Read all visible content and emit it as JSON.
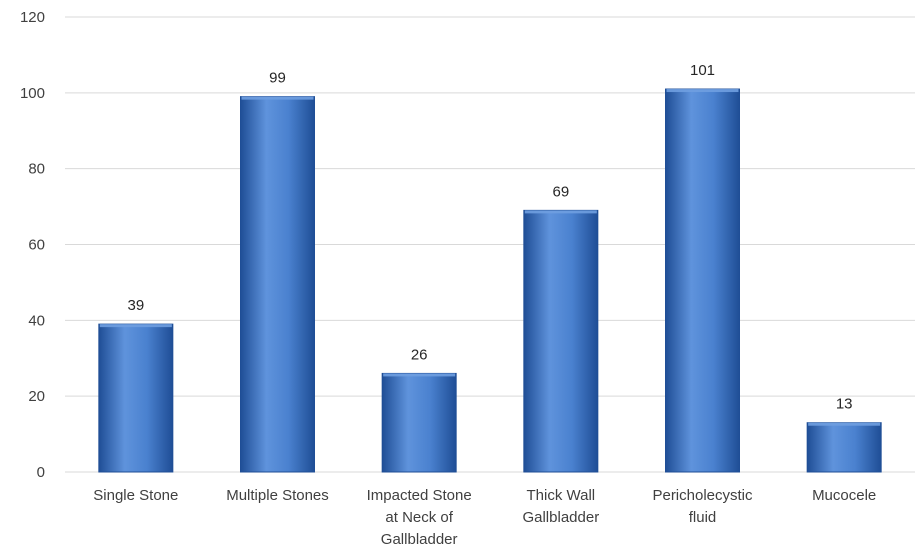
{
  "chart_data": {
    "type": "bar",
    "title": "",
    "xlabel": "",
    "ylabel": "",
    "categories": [
      [
        "Single Stone"
      ],
      [
        "Multiple Stones"
      ],
      [
        "Impacted Stone",
        "at Neck of",
        "Gallbladder"
      ],
      [
        "Thick Wall",
        "Gallbladder"
      ],
      [
        "Pericholecystic",
        "fluid"
      ],
      [
        "Mucocele"
      ]
    ],
    "values": [
      39,
      99,
      26,
      69,
      101,
      13
    ],
    "data_labels": [
      "39",
      "99",
      "26",
      "69",
      "101",
      "13"
    ],
    "ylim": [
      0,
      120
    ],
    "yticks": [
      0,
      20,
      40,
      60,
      80,
      100,
      120
    ],
    "grid": true,
    "legend": "none",
    "bar_color": "#3b73c4",
    "bar_color_dark": "#1f4e96",
    "bar_color_light": "#6f9fe0"
  }
}
